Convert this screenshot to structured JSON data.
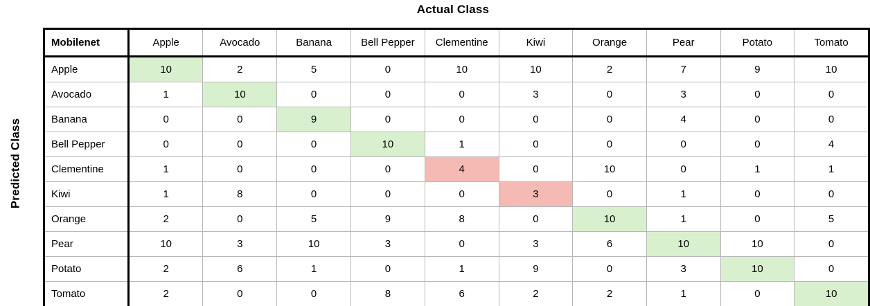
{
  "title": "Actual Class",
  "y_axis_label": "Predicted Class",
  "colors": {
    "correct_cell": "#d9f0ce",
    "error_cell": "#f6bab4",
    "grid_line": "#b7b7b7",
    "frame": "#000000",
    "background": "#ffffff"
  },
  "chart_data": {
    "type": "table",
    "subtype": "confusion-matrix",
    "title": "Actual Class",
    "row_axis_label": "Predicted Class",
    "corner_label": "Mobilenet",
    "columns": [
      "Apple",
      "Avocado",
      "Banana",
      "Bell Pepper",
      "Clementine",
      "Kiwi",
      "Orange",
      "Pear",
      "Potato",
      "Tomato"
    ],
    "rows": [
      {
        "label": "Apple",
        "values": [
          10,
          2,
          5,
          0,
          10,
          10,
          2,
          7,
          9,
          10
        ],
        "diagonal_highlight": "green"
      },
      {
        "label": "Avocado",
        "values": [
          1,
          10,
          0,
          0,
          0,
          3,
          0,
          3,
          0,
          0
        ],
        "diagonal_highlight": "green"
      },
      {
        "label": "Banana",
        "values": [
          0,
          0,
          9,
          0,
          0,
          0,
          0,
          4,
          0,
          0
        ],
        "diagonal_highlight": "green"
      },
      {
        "label": "Bell Pepper",
        "values": [
          0,
          0,
          0,
          10,
          1,
          0,
          0,
          0,
          0,
          4
        ],
        "diagonal_highlight": "green"
      },
      {
        "label": "Clementine",
        "values": [
          1,
          0,
          0,
          0,
          4,
          0,
          10,
          0,
          1,
          1
        ],
        "diagonal_highlight": "red"
      },
      {
        "label": "Kiwi",
        "values": [
          1,
          8,
          0,
          0,
          0,
          3,
          0,
          1,
          0,
          0
        ],
        "diagonal_highlight": "red"
      },
      {
        "label": "Orange",
        "values": [
          2,
          0,
          5,
          9,
          8,
          0,
          10,
          1,
          0,
          5
        ],
        "diagonal_highlight": "green"
      },
      {
        "label": "Pear",
        "values": [
          10,
          3,
          10,
          3,
          0,
          3,
          6,
          10,
          10,
          0
        ],
        "diagonal_highlight": "green"
      },
      {
        "label": "Potato",
        "values": [
          2,
          6,
          1,
          0,
          1,
          9,
          0,
          3,
          10,
          0
        ],
        "diagonal_highlight": "green"
      },
      {
        "label": "Tomato",
        "values": [
          2,
          0,
          0,
          8,
          6,
          2,
          2,
          1,
          0,
          10
        ],
        "diagonal_highlight": "green"
      }
    ]
  }
}
